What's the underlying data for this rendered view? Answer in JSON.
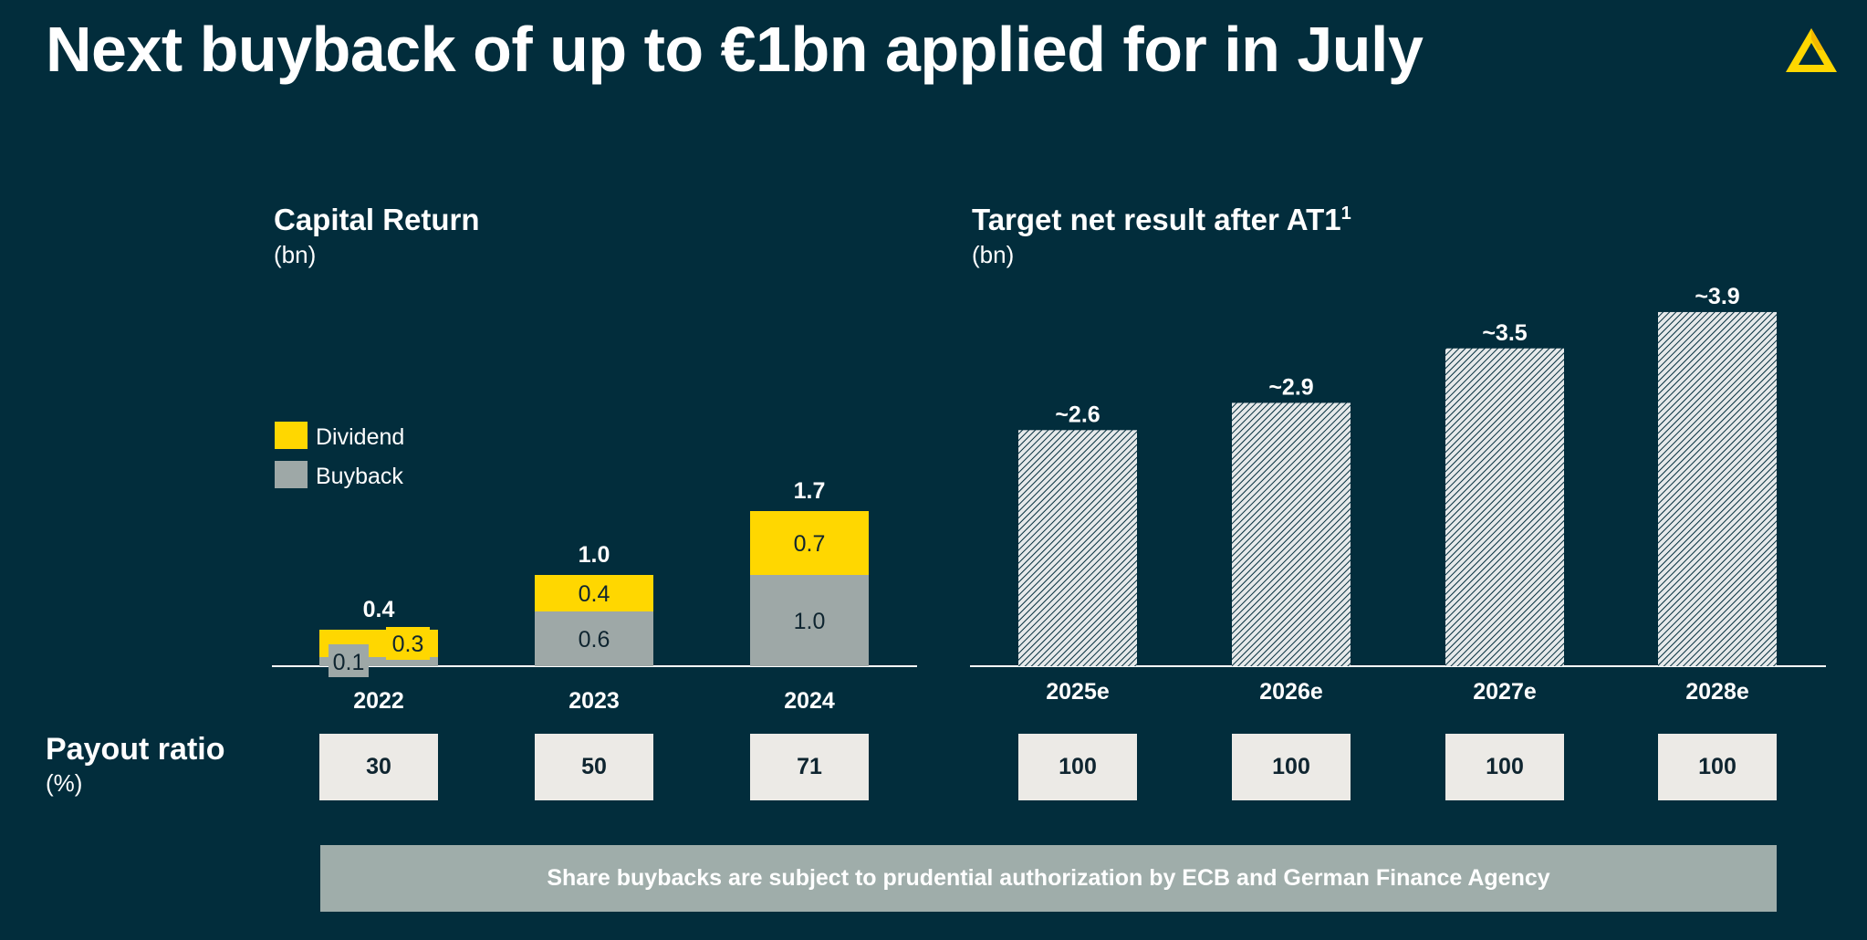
{
  "slide": {
    "title": "Next buyback of up to €1bn applied for in July"
  },
  "colors": {
    "background": "#022d3c",
    "dividend": "#ffd700",
    "buyback": "#9ea8a7",
    "payout_box": "#eceae6",
    "footer": "#9fadaa"
  },
  "logo": {
    "icon": "triangle-logo-icon"
  },
  "capital_return": {
    "title": "Capital Return",
    "unit": "(bn)"
  },
  "target_net_result": {
    "title": "Target net result after AT1",
    "title_sup": "1",
    "unit": "(bn)"
  },
  "payout": {
    "label": "Payout ratio",
    "unit": "(%)",
    "values": [
      "30",
      "50",
      "71",
      "100",
      "100",
      "100",
      "100"
    ]
  },
  "footer": {
    "text": "Share buybacks are subject to prudential authorization by ECB and German Finance Agency"
  },
  "chart_data": [
    {
      "type": "bar",
      "stacked": true,
      "title": "Capital Return",
      "ylabel": "(bn)",
      "categories": [
        "2022",
        "2023",
        "2024"
      ],
      "series": [
        {
          "name": "Buyback",
          "values": [
            0.1,
            0.6,
            1.0
          ],
          "labels": [
            "0.1",
            "0.6",
            "1.0"
          ],
          "color": "#9ea8a7"
        },
        {
          "name": "Dividend",
          "values": [
            0.3,
            0.4,
            0.7
          ],
          "labels": [
            "0.3",
            "0.4",
            "0.7"
          ],
          "color": "#ffd700"
        }
      ],
      "totals": [
        0.4,
        1.0,
        1.7
      ],
      "total_labels": [
        "0.4",
        "1.0",
        "1.7"
      ],
      "legend": [
        "Dividend",
        "Buyback"
      ],
      "legend_position": "left"
    },
    {
      "type": "bar",
      "title": "Target net result after AT1",
      "ylabel": "(bn)",
      "categories": [
        "2025e",
        "2026e",
        "2027e",
        "2028e"
      ],
      "values": [
        2.6,
        2.9,
        3.5,
        3.9
      ],
      "labels": [
        "~2.6",
        "~2.9",
        "~3.5",
        "~3.9"
      ],
      "fill": "hatched"
    }
  ]
}
